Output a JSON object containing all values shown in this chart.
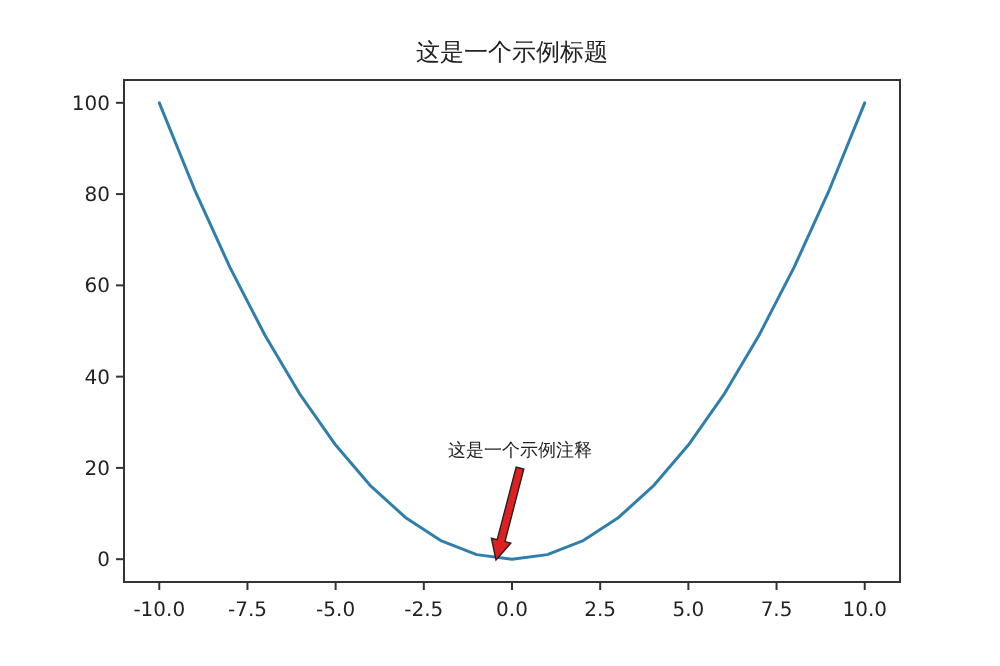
{
  "chart_data": {
    "type": "line",
    "title": "这是一个示例标题",
    "x": [
      -10,
      -9,
      -8,
      -7,
      -6,
      -5,
      -4,
      -3,
      -2,
      -1,
      0,
      1,
      2,
      3,
      4,
      5,
      6,
      7,
      8,
      9,
      10
    ],
    "series": [
      {
        "color": "#2f7eab",
        "values": [
          100,
          81,
          64,
          49,
          36,
          25,
          16,
          9,
          4,
          1,
          0,
          1,
          4,
          9,
          16,
          25,
          36,
          49,
          64,
          81,
          100
        ]
      }
    ],
    "xlim": [
      -11,
      11
    ],
    "ylim": [
      -5,
      105
    ],
    "xticks": [
      {
        "value": -10,
        "label": "-10.0"
      },
      {
        "value": -7.5,
        "label": "-7.5"
      },
      {
        "value": -5,
        "label": "-5.0"
      },
      {
        "value": -2.5,
        "label": "-2.5"
      },
      {
        "value": 0,
        "label": "0.0"
      },
      {
        "value": 2.5,
        "label": "2.5"
      },
      {
        "value": 5,
        "label": "5.0"
      },
      {
        "value": 7.5,
        "label": "7.5"
      },
      {
        "value": 10,
        "label": "10.0"
      }
    ],
    "yticks": [
      0,
      20,
      40,
      60,
      80,
      100
    ],
    "annotations": [
      "这是一个示例注释"
    ],
    "grid": false,
    "marker": "none",
    "line_style": "solid"
  }
}
